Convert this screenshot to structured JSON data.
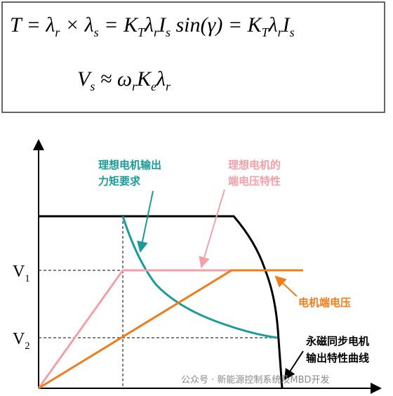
{
  "formulas": [
    {
      "tokens": [
        {
          "base": "T"
        },
        {
          "base": " = "
        },
        {
          "base": "λ",
          "sub": "r"
        },
        {
          "base": " × "
        },
        {
          "base": "λ",
          "sub": "s"
        },
        {
          "base": " = "
        },
        {
          "base": "K",
          "sub": "T"
        },
        {
          "base": "λ",
          "sub": "r"
        },
        {
          "base": "I",
          "sub": "s"
        },
        {
          "base": " sin(γ)"
        },
        {
          "base": " = "
        },
        {
          "base": "K",
          "sub": "T"
        },
        {
          "base": "λ",
          "sub": "r"
        },
        {
          "base": "I",
          "sub": "s"
        }
      ]
    },
    {
      "tokens": [
        {
          "base": "V",
          "sub": "s"
        },
        {
          "base": " ≈ "
        },
        {
          "base": "ω",
          "sub": "r"
        },
        {
          "base": "K",
          "sub": "e"
        },
        {
          "base": "λ",
          "sub": "r"
        }
      ]
    }
  ],
  "axis_labels": [
    {
      "base": "V",
      "sub": "1"
    },
    {
      "base": "V",
      "sub": "2"
    }
  ],
  "annotations": {
    "ideal_torque": [
      "理想电机输出",
      "力矩要求"
    ],
    "ideal_voltage": [
      "理想电机的",
      "端电压特性"
    ],
    "terminal_voltage": [
      "电机端电压"
    ],
    "pmsm_curve": [
      "永磁同步电机",
      "输出特性曲线"
    ]
  },
  "watermark": "公众号 · 新能源控制系统及MBD开发"
}
